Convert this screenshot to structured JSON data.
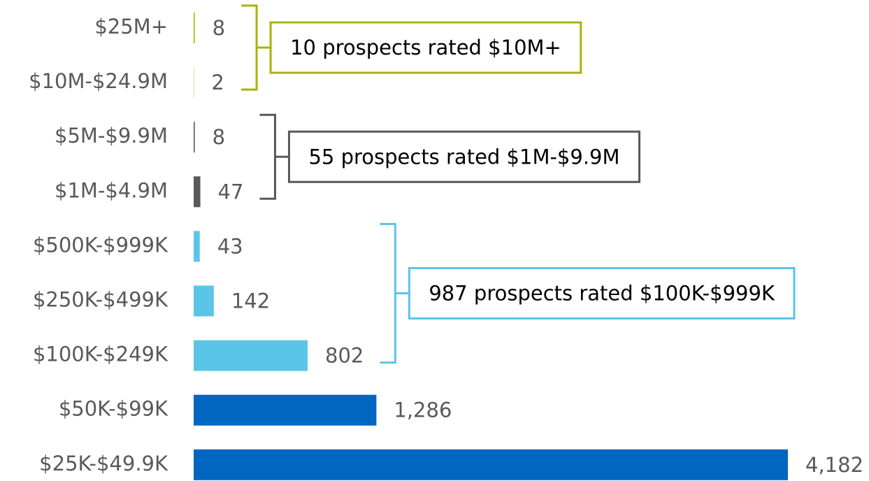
{
  "chart_data": {
    "type": "bar",
    "orientation": "horizontal",
    "categories": [
      "$25M+",
      "$10M-$24.9M",
      "$5M-$9.9M",
      "$1M-$4.9M",
      "$500K-$999K",
      "$250K-$499K",
      "$100K-$249K",
      "$50K-$99K",
      "$25K-$49.9K"
    ],
    "values": [
      8,
      2,
      8,
      47,
      43,
      142,
      802,
      1286,
      4182
    ],
    "value_labels": [
      "8",
      "2",
      "8",
      "47",
      "43",
      "142",
      "802",
      "1,286",
      "4,182"
    ],
    "colors": [
      "#a9b300",
      "#a9b300",
      "#595959",
      "#595959",
      "#5bc5e8",
      "#5bc5e8",
      "#5bc5e8",
      "#0066bf",
      "#0066bf"
    ],
    "annotations": [
      {
        "text": "10 prospects rated $10M+",
        "color": "#a9b300"
      },
      {
        "text": "55 prospects rated $1M-$9.9M",
        "color": "#595959"
      },
      {
        "text": "987 prospects rated $100K-$999K",
        "color": "#5bc5e8"
      }
    ]
  }
}
